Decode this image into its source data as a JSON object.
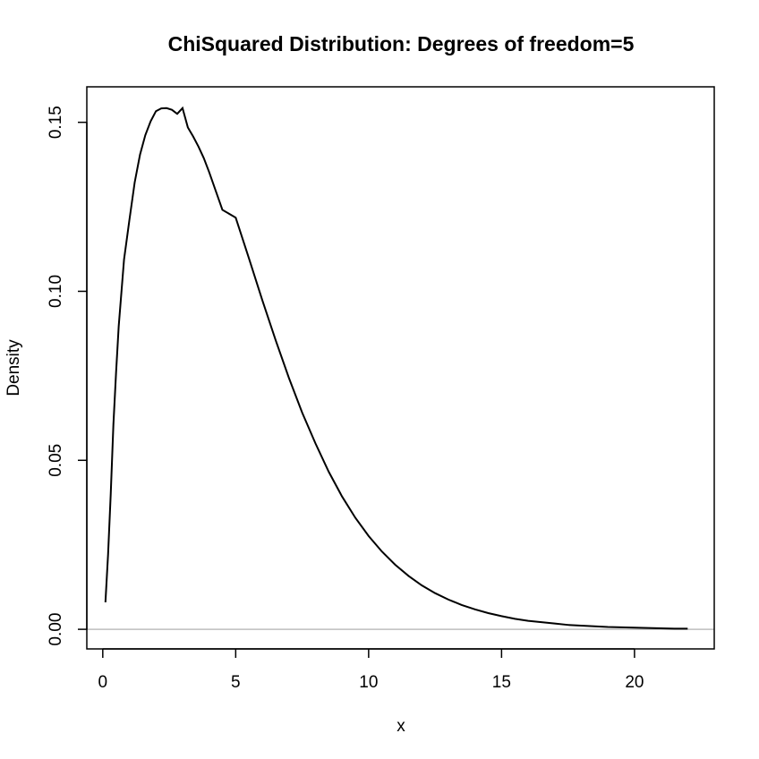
{
  "chart_data": {
    "type": "line",
    "title": "ChiSquared Distribution:  Degrees of freedom=5",
    "xlabel": "x",
    "ylabel": "Density",
    "xlim": [
      -0.6,
      23.0
    ],
    "ylim": [
      -0.0058,
      0.1605
    ],
    "xticks": [
      0,
      5,
      10,
      15,
      20
    ],
    "xtick_labels": [
      "0",
      "5",
      "10",
      "15",
      "20"
    ],
    "yticks": [
      0.0,
      0.05,
      0.1,
      0.15
    ],
    "ytick_labels": [
      "0.00",
      "0.05",
      "0.10",
      "0.15"
    ],
    "reference_line": {
      "y": 0,
      "color": "#bebebe"
    },
    "curve_color": "#000000",
    "grid": false,
    "series": [
      {
        "x": [
          0.1,
          0.2,
          0.3,
          0.4,
          0.5,
          0.6,
          0.8,
          1.0,
          1.2,
          1.4,
          1.6,
          1.8,
          2.0,
          2.2,
          2.4,
          2.6,
          2.8,
          3.0,
          3.2,
          3.4,
          3.6,
          3.8,
          4.0,
          4.5,
          5.0,
          5.5,
          6.0,
          6.5,
          7.0,
          7.5,
          8.0,
          8.5,
          9.0,
          9.5,
          10.0,
          10.5,
          11.0,
          11.5,
          12.0,
          12.5,
          13.0,
          13.5,
          14.0,
          14.5,
          15.0,
          15.5,
          16.0,
          16.5,
          17.0,
          17.5,
          18.0,
          18.5,
          19.0,
          19.5,
          20.0,
          20.5,
          21.0,
          21.5,
          22.0
        ],
        "y": [
          0.008,
          0.0222,
          0.0401,
          0.0606,
          0.0759,
          0.0897,
          0.1094,
          0.121,
          0.1322,
          0.1404,
          0.1462,
          0.1503,
          0.1533,
          0.1541,
          0.1542,
          0.1537,
          0.1525,
          0.1542,
          0.1485,
          0.1458,
          0.1428,
          0.1394,
          0.1353,
          0.1241,
          0.1218,
          0.1097,
          0.0974,
          0.0856,
          0.0744,
          0.0641,
          0.055,
          0.0466,
          0.0393,
          0.033,
          0.0276,
          0.023,
          0.0191,
          0.0158,
          0.013,
          0.0107,
          0.0088,
          0.0072,
          0.0059,
          0.0048,
          0.0039,
          0.0031,
          0.0025,
          0.0021,
          0.0017,
          0.0013,
          0.0011,
          0.0009,
          0.0007,
          0.0006,
          0.0005,
          0.0004,
          0.0003,
          0.0002,
          0.0002
        ]
      }
    ]
  }
}
